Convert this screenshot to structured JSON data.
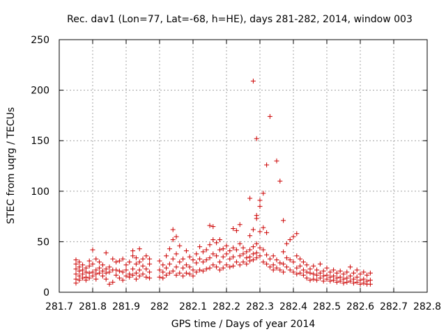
{
  "chart_data": {
    "type": "scatter",
    "title": "Rec. dav1 (Lon=77, Lat=-68, h=HE), days 281-282, 2014, window 003",
    "xlabel": "GPS time / Days of year 2014",
    "ylabel": "STEC from uqrg / TECUs",
    "xlim": [
      281.7,
      282.8
    ],
    "ylim": [
      0,
      250
    ],
    "xticks": [
      "281.7",
      "281.8",
      "281.9",
      "282",
      "282.1",
      "282.2",
      "282.3",
      "282.4",
      "282.5",
      "282.6",
      "282.7",
      "282.8"
    ],
    "yticks": [
      "0",
      "50",
      "100",
      "150",
      "200",
      "250"
    ],
    "grid": true,
    "marker": "plus",
    "color": "#cc0000",
    "series": [
      {
        "points": [
          [
            281.75,
            32
          ],
          [
            281.75,
            28
          ],
          [
            281.75,
            23
          ],
          [
            281.75,
            18
          ],
          [
            281.75,
            13
          ],
          [
            281.75,
            9
          ],
          [
            281.76,
            30
          ],
          [
            281.76,
            25
          ],
          [
            281.76,
            21
          ],
          [
            281.76,
            16
          ],
          [
            281.76,
            12
          ],
          [
            281.77,
            27
          ],
          [
            281.77,
            22
          ],
          [
            281.77,
            18
          ],
          [
            281.77,
            14
          ],
          [
            281.78,
            24
          ],
          [
            281.78,
            20
          ],
          [
            281.78,
            15
          ],
          [
            281.78,
            12
          ],
          [
            281.79,
            31
          ],
          [
            281.79,
            26
          ],
          [
            281.79,
            19
          ],
          [
            281.79,
            14
          ],
          [
            281.8,
            42
          ],
          [
            281.8,
            28
          ],
          [
            281.8,
            20
          ],
          [
            281.8,
            16
          ],
          [
            281.81,
            33
          ],
          [
            281.81,
            22
          ],
          [
            281.81,
            18
          ],
          [
            281.81,
            13
          ],
          [
            281.82,
            30
          ],
          [
            281.82,
            24
          ],
          [
            281.82,
            19
          ],
          [
            281.83,
            27
          ],
          [
            281.83,
            21
          ],
          [
            281.83,
            16
          ],
          [
            281.84,
            39
          ],
          [
            281.84,
            23
          ],
          [
            281.84,
            19
          ],
          [
            281.84,
            13
          ],
          [
            281.85,
            25
          ],
          [
            281.85,
            20
          ],
          [
            281.85,
            8
          ],
          [
            281.86,
            33
          ],
          [
            281.86,
            22
          ],
          [
            281.86,
            10
          ],
          [
            281.87,
            30
          ],
          [
            281.87,
            22
          ],
          [
            281.87,
            17
          ],
          [
            281.88,
            31
          ],
          [
            281.88,
            21
          ],
          [
            281.88,
            14
          ],
          [
            281.89,
            33
          ],
          [
            281.89,
            20
          ],
          [
            281.89,
            12
          ],
          [
            281.9,
            27
          ],
          [
            281.9,
            22
          ],
          [
            281.9,
            16
          ],
          [
            281.91,
            30
          ],
          [
            281.91,
            18
          ],
          [
            281.91,
            15
          ],
          [
            281.92,
            41
          ],
          [
            281.92,
            36
          ],
          [
            281.92,
            23
          ],
          [
            281.92,
            17
          ],
          [
            281.93,
            34
          ],
          [
            281.93,
            28
          ],
          [
            281.93,
            19
          ],
          [
            281.93,
            13
          ],
          [
            281.94,
            43
          ],
          [
            281.94,
            30
          ],
          [
            281.94,
            22
          ],
          [
            281.94,
            16
          ],
          [
            281.95,
            33
          ],
          [
            281.95,
            26
          ],
          [
            281.95,
            18
          ],
          [
            281.96,
            36
          ],
          [
            281.96,
            23
          ],
          [
            281.96,
            15
          ],
          [
            281.97,
            33
          ],
          [
            281.97,
            28
          ],
          [
            281.97,
            20
          ],
          [
            281.97,
            14
          ],
          [
            282.0,
            31
          ],
          [
            282.0,
            22
          ],
          [
            282.0,
            15
          ],
          [
            282.01,
            27
          ],
          [
            282.01,
            20
          ],
          [
            282.01,
            14
          ],
          [
            282.02,
            36
          ],
          [
            282.02,
            24
          ],
          [
            282.02,
            17
          ],
          [
            282.03,
            43
          ],
          [
            282.03,
            28
          ],
          [
            282.03,
            19
          ],
          [
            282.04,
            62
          ],
          [
            282.04,
            52
          ],
          [
            282.04,
            33
          ],
          [
            282.04,
            21
          ],
          [
            282.05,
            55
          ],
          [
            282.05,
            38
          ],
          [
            282.05,
            25
          ],
          [
            282.05,
            17
          ],
          [
            282.06,
            46
          ],
          [
            282.06,
            30
          ],
          [
            282.06,
            19
          ],
          [
            282.07,
            33
          ],
          [
            282.07,
            24
          ],
          [
            282.07,
            16
          ],
          [
            282.08,
            41
          ],
          [
            282.08,
            27
          ],
          [
            282.08,
            19
          ],
          [
            282.09,
            35
          ],
          [
            282.09,
            25
          ],
          [
            282.09,
            18
          ],
          [
            282.1,
            32
          ],
          [
            282.1,
            22
          ],
          [
            282.1,
            16
          ],
          [
            282.11,
            38
          ],
          [
            282.11,
            29
          ],
          [
            282.11,
            20
          ],
          [
            282.12,
            45
          ],
          [
            282.12,
            33
          ],
          [
            282.12,
            22
          ],
          [
            282.13,
            40
          ],
          [
            282.13,
            30
          ],
          [
            282.13,
            21
          ],
          [
            282.14,
            42
          ],
          [
            282.14,
            32
          ],
          [
            282.14,
            23
          ],
          [
            282.15,
            66
          ],
          [
            282.15,
            47
          ],
          [
            282.15,
            34
          ],
          [
            282.15,
            24
          ],
          [
            282.16,
            65
          ],
          [
            282.16,
            52
          ],
          [
            282.16,
            38
          ],
          [
            282.16,
            27
          ],
          [
            282.17,
            49
          ],
          [
            282.17,
            36
          ],
          [
            282.17,
            25
          ],
          [
            282.18,
            52
          ],
          [
            282.18,
            42
          ],
          [
            282.18,
            30
          ],
          [
            282.18,
            22
          ],
          [
            282.19,
            43
          ],
          [
            282.19,
            35
          ],
          [
            282.19,
            24
          ],
          [
            282.2,
            46
          ],
          [
            282.2,
            38
          ],
          [
            282.2,
            27
          ],
          [
            282.21,
            41
          ],
          [
            282.21,
            33
          ],
          [
            282.21,
            25
          ],
          [
            282.22,
            63
          ],
          [
            282.22,
            44
          ],
          [
            282.22,
            35
          ],
          [
            282.22,
            26
          ],
          [
            282.23,
            61
          ],
          [
            282.23,
            42
          ],
          [
            282.23,
            30
          ],
          [
            282.24,
            67
          ],
          [
            282.24,
            48
          ],
          [
            282.24,
            36
          ],
          [
            282.24,
            27
          ],
          [
            282.25,
            44
          ],
          [
            282.25,
            38
          ],
          [
            282.25,
            30
          ],
          [
            282.26,
            40
          ],
          [
            282.26,
            34
          ],
          [
            282.26,
            28
          ],
          [
            282.27,
            93
          ],
          [
            282.27,
            56
          ],
          [
            282.27,
            42
          ],
          [
            282.27,
            35
          ],
          [
            282.27,
            31
          ],
          [
            282.28,
            209
          ],
          [
            282.28,
            62
          ],
          [
            282.28,
            45
          ],
          [
            282.28,
            38
          ],
          [
            282.28,
            32
          ],
          [
            282.29,
            152
          ],
          [
            282.29,
            76
          ],
          [
            282.29,
            73
          ],
          [
            282.29,
            48
          ],
          [
            282.29,
            39
          ],
          [
            282.29,
            34
          ],
          [
            282.3,
            91
          ],
          [
            282.3,
            85
          ],
          [
            282.3,
            60
          ],
          [
            282.3,
            44
          ],
          [
            282.3,
            36
          ],
          [
            282.31,
            98
          ],
          [
            282.31,
            64
          ],
          [
            282.31,
            42
          ],
          [
            282.31,
            30
          ],
          [
            282.32,
            126
          ],
          [
            282.32,
            59
          ],
          [
            282.32,
            37
          ],
          [
            282.32,
            28
          ],
          [
            282.33,
            174
          ],
          [
            282.33,
            33
          ],
          [
            282.33,
            25
          ],
          [
            282.34,
            36
          ],
          [
            282.34,
            27
          ],
          [
            282.34,
            22
          ],
          [
            282.35,
            130
          ],
          [
            282.35,
            32
          ],
          [
            282.35,
            24
          ],
          [
            282.36,
            110
          ],
          [
            282.36,
            29
          ],
          [
            282.36,
            22
          ],
          [
            282.37,
            71
          ],
          [
            282.37,
            40
          ],
          [
            282.37,
            28
          ],
          [
            282.37,
            20
          ],
          [
            282.38,
            48
          ],
          [
            282.38,
            34
          ],
          [
            282.38,
            25
          ],
          [
            282.39,
            52
          ],
          [
            282.39,
            32
          ],
          [
            282.39,
            22
          ],
          [
            282.4,
            55
          ],
          [
            282.4,
            30
          ],
          [
            282.4,
            20
          ],
          [
            282.41,
            58
          ],
          [
            282.41,
            36
          ],
          [
            282.41,
            24
          ],
          [
            282.41,
            18
          ],
          [
            282.42,
            33
          ],
          [
            282.42,
            26
          ],
          [
            282.42,
            19
          ],
          [
            282.43,
            30
          ],
          [
            282.43,
            22
          ],
          [
            282.43,
            17
          ],
          [
            282.44,
            27
          ],
          [
            282.44,
            20
          ],
          [
            282.44,
            14
          ],
          [
            282.45,
            23
          ],
          [
            282.45,
            19
          ],
          [
            282.45,
            12
          ],
          [
            282.46,
            26
          ],
          [
            282.46,
            18
          ],
          [
            282.46,
            13
          ],
          [
            282.47,
            22
          ],
          [
            282.47,
            17
          ],
          [
            282.47,
            12
          ],
          [
            282.48,
            28
          ],
          [
            282.48,
            19
          ],
          [
            282.48,
            14
          ],
          [
            282.49,
            21
          ],
          [
            282.49,
            16
          ],
          [
            282.49,
            11
          ],
          [
            282.5,
            24
          ],
          [
            282.5,
            17
          ],
          [
            282.5,
            13
          ],
          [
            282.51,
            20
          ],
          [
            282.51,
            15
          ],
          [
            282.51,
            11
          ],
          [
            282.52,
            22
          ],
          [
            282.52,
            16
          ],
          [
            282.52,
            12
          ],
          [
            282.53,
            19
          ],
          [
            282.53,
            14
          ],
          [
            282.53,
            10
          ],
          [
            282.54,
            21
          ],
          [
            282.54,
            15
          ],
          [
            282.54,
            11
          ],
          [
            282.55,
            18
          ],
          [
            282.55,
            13
          ],
          [
            282.55,
            9
          ],
          [
            282.56,
            20
          ],
          [
            282.56,
            14
          ],
          [
            282.56,
            10
          ],
          [
            282.57,
            25
          ],
          [
            282.57,
            16
          ],
          [
            282.57,
            11
          ],
          [
            282.58,
            19
          ],
          [
            282.58,
            13
          ],
          [
            282.58,
            9
          ],
          [
            282.59,
            22
          ],
          [
            282.59,
            15
          ],
          [
            282.59,
            10
          ],
          [
            282.6,
            18
          ],
          [
            282.6,
            12
          ],
          [
            282.6,
            8
          ],
          [
            282.61,
            20
          ],
          [
            282.61,
            13
          ],
          [
            282.61,
            9
          ],
          [
            282.62,
            17
          ],
          [
            282.62,
            11
          ],
          [
            282.62,
            8
          ],
          [
            282.63,
            19
          ],
          [
            282.63,
            12
          ],
          [
            282.63,
            8
          ]
        ]
      }
    ]
  }
}
